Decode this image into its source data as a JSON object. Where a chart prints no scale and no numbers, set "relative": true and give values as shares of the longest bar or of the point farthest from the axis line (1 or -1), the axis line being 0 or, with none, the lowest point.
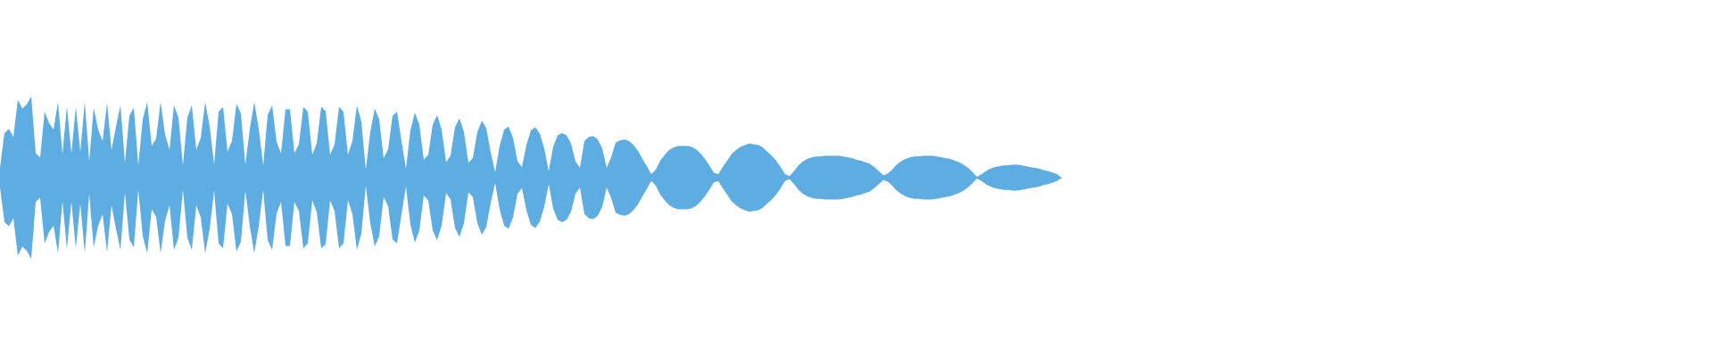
{
  "chart_data": {
    "type": "area",
    "relative": true,
    "categories": [
      null,
      null,
      null,
      null,
      null,
      null,
      null,
      null,
      null,
      null,
      null,
      null,
      null,
      null,
      null,
      null,
      null,
      null,
      null,
      null,
      null,
      null,
      null,
      null,
      null,
      null,
      null,
      null,
      null,
      null,
      null,
      null,
      null,
      null,
      null,
      null,
      null,
      null,
      null,
      null,
      null,
      null,
      null,
      null,
      null,
      null,
      null,
      null,
      null,
      null,
      null,
      null,
      null,
      null,
      null,
      null,
      null,
      null,
      null,
      null,
      null,
      null,
      null,
      null,
      null,
      null,
      null,
      null,
      null,
      null,
      null,
      null,
      null,
      null,
      null,
      null,
      null,
      null,
      null,
      null,
      null,
      null,
      null,
      null,
      null,
      null,
      null,
      null,
      null,
      null,
      null,
      null,
      null,
      null,
      null,
      null,
      null,
      null,
      null,
      null,
      null,
      null,
      null,
      null,
      null,
      null,
      null,
      null,
      null,
      null,
      null,
      null,
      null,
      null,
      null,
      null,
      null,
      null,
      null,
      null,
      null,
      null,
      null,
      null,
      null,
      null,
      null,
      null,
      null,
      null,
      null,
      null,
      null,
      null,
      null,
      null,
      null,
      null,
      null,
      null,
      null,
      null,
      null,
      null,
      null,
      null,
      null,
      null,
      null,
      null,
      null,
      null,
      null,
      null,
      null,
      null,
      null,
      null,
      null,
      null,
      null,
      null,
      null,
      null,
      null,
      null,
      null,
      null,
      null,
      null,
      null,
      null,
      null,
      null,
      null,
      null,
      null,
      null,
      null,
      null,
      null,
      null,
      null,
      null,
      null,
      null,
      null,
      null,
      null,
      null,
      null,
      null,
      null,
      null,
      null,
      null,
      null,
      null,
      null,
      null,
      null,
      null,
      null,
      null,
      null,
      null,
      null,
      null,
      null,
      null,
      null,
      null,
      null,
      null,
      null,
      null,
      null,
      null,
      null,
      null,
      null,
      null,
      null,
      null,
      null,
      null,
      null,
      null,
      null,
      null,
      null,
      null,
      null,
      null,
      null,
      null,
      null,
      null,
      null
    ],
    "series": [
      {
        "color": "#5dade2",
        "values": [
          0.12,
          0.55,
          0.6,
          0.5,
          0.96,
          0.85,
          0.9,
          1.0,
          0.3,
          0.25,
          0.81,
          0.67,
          0.59,
          0.93,
          0.29,
          0.88,
          0.3,
          0.87,
          0.32,
          0.93,
          0.2,
          0.86,
          0.59,
          0.45,
          0.92,
          0.34,
          0.63,
          0.89,
          0.18,
          0.76,
          0.86,
          0.15,
          0.72,
          0.93,
          0.39,
          0.48,
          0.93,
          0.53,
          0.34,
          0.89,
          0.74,
          0.15,
          0.74,
          0.89,
          0.34,
          0.49,
          0.93,
          0.63,
          0.16,
          0.81,
          0.87,
          0.32,
          0.45,
          0.91,
          0.79,
          0.16,
          0.6,
          0.93,
          0.6,
          0.15,
          0.77,
          0.89,
          0.44,
          0.3,
          0.84,
          0.84,
          0.3,
          0.41,
          0.87,
          0.81,
          0.28,
          0.42,
          0.87,
          0.82,
          0.28,
          0.41,
          0.87,
          0.81,
          0.28,
          0.45,
          0.89,
          0.69,
          0.1,
          0.56,
          0.85,
          0.72,
          0.24,
          0.35,
          0.76,
          0.81,
          0.45,
          0.11,
          0.58,
          0.8,
          0.65,
          0.22,
          0.28,
          0.65,
          0.77,
          0.59,
          0.19,
          0.27,
          0.62,
          0.73,
          0.56,
          0.18,
          0.24,
          0.56,
          0.7,
          0.61,
          0.31,
          0.07,
          0.39,
          0.59,
          0.63,
          0.49,
          0.2,
          0.13,
          0.4,
          0.58,
          0.62,
          0.54,
          0.36,
          0.08,
          0.38,
          0.52,
          0.55,
          0.52,
          0.42,
          0.2,
          0.12,
          0.45,
          0.5,
          0.51,
          0.47,
          0.36,
          0.12,
          0.25,
          0.43,
          0.46,
          0.47,
          0.45,
          0.4,
          0.33,
          0.23,
          0.14,
          0.04,
          0.1,
          0.21,
          0.28,
          0.34,
          0.37,
          0.39,
          0.39,
          0.39,
          0.38,
          0.35,
          0.3,
          0.23,
          0.15,
          0.06,
          0.04,
          0.13,
          0.21,
          0.29,
          0.34,
          0.38,
          0.4,
          0.42,
          0.41,
          0.4,
          0.37,
          0.32,
          0.27,
          0.21,
          0.13,
          0.04,
          0.02,
          0.08,
          0.15,
          0.2,
          0.23,
          0.25,
          0.26,
          0.26,
          0.27,
          0.27,
          0.27,
          0.27,
          0.26,
          0.25,
          0.24,
          0.22,
          0.21,
          0.19,
          0.17,
          0.13,
          0.08,
          0.03,
          0.05,
          0.1,
          0.16,
          0.2,
          0.23,
          0.25,
          0.26,
          0.26,
          0.27,
          0.27,
          0.27,
          0.26,
          0.25,
          0.24,
          0.23,
          0.21,
          0.19,
          0.16,
          0.12,
          0.07,
          0.01,
          0.04,
          0.08,
          0.11,
          0.13,
          0.14,
          0.15,
          0.15,
          0.16,
          0.16,
          0.15,
          0.14,
          0.13,
          0.12,
          0.11,
          0.09,
          0.08,
          0.06,
          0.04,
          0
        ]
      },
      {
        "color": "#5dade2",
        "values": [
          -0.12,
          -0.55,
          -0.6,
          -0.5,
          -0.96,
          -0.85,
          -0.9,
          -1.0,
          -0.3,
          -0.25,
          -0.81,
          -0.67,
          -0.59,
          -0.93,
          -0.29,
          -0.88,
          -0.3,
          -0.87,
          -0.32,
          -0.93,
          -0.2,
          -0.86,
          -0.59,
          -0.45,
          -0.92,
          -0.34,
          -0.63,
          -0.89,
          -0.18,
          -0.76,
          -0.86,
          -0.15,
          -0.72,
          -0.93,
          -0.39,
          -0.48,
          -0.93,
          -0.53,
          -0.34,
          -0.89,
          -0.74,
          -0.15,
          -0.74,
          -0.89,
          -0.34,
          -0.49,
          -0.93,
          -0.63,
          -0.16,
          -0.81,
          -0.87,
          -0.32,
          -0.45,
          -0.91,
          -0.79,
          -0.16,
          -0.6,
          -0.93,
          -0.6,
          -0.15,
          -0.77,
          -0.89,
          -0.44,
          -0.3,
          -0.84,
          -0.84,
          -0.3,
          -0.41,
          -0.87,
          -0.81,
          -0.28,
          -0.42,
          -0.87,
          -0.82,
          -0.28,
          -0.41,
          -0.87,
          -0.81,
          -0.28,
          -0.45,
          -0.89,
          -0.69,
          -0.1,
          -0.56,
          -0.85,
          -0.72,
          -0.24,
          -0.35,
          -0.76,
          -0.81,
          -0.45,
          -0.11,
          -0.58,
          -0.8,
          -0.65,
          -0.22,
          -0.28,
          -0.65,
          -0.77,
          -0.59,
          -0.19,
          -0.27,
          -0.62,
          -0.73,
          -0.56,
          -0.18,
          -0.24,
          -0.56,
          -0.7,
          -0.61,
          -0.31,
          -0.07,
          -0.39,
          -0.59,
          -0.63,
          -0.49,
          -0.2,
          -0.13,
          -0.4,
          -0.58,
          -0.62,
          -0.54,
          -0.36,
          -0.08,
          -0.38,
          -0.52,
          -0.55,
          -0.52,
          -0.42,
          -0.2,
          -0.12,
          -0.45,
          -0.5,
          -0.51,
          -0.47,
          -0.36,
          -0.12,
          -0.25,
          -0.43,
          -0.46,
          -0.47,
          -0.45,
          -0.4,
          -0.33,
          -0.23,
          -0.14,
          -0.04,
          -0.1,
          -0.21,
          -0.28,
          -0.34,
          -0.37,
          -0.39,
          -0.39,
          -0.39,
          -0.38,
          -0.35,
          -0.3,
          -0.23,
          -0.15,
          -0.06,
          -0.04,
          -0.13,
          -0.21,
          -0.29,
          -0.34,
          -0.38,
          -0.4,
          -0.42,
          -0.41,
          -0.4,
          -0.37,
          -0.32,
          -0.27,
          -0.21,
          -0.13,
          -0.04,
          -0.02,
          -0.08,
          -0.15,
          -0.2,
          -0.23,
          -0.25,
          -0.26,
          -0.26,
          -0.27,
          -0.27,
          -0.27,
          -0.27,
          -0.26,
          -0.25,
          -0.24,
          -0.22,
          -0.21,
          -0.19,
          -0.17,
          -0.13,
          -0.08,
          -0.03,
          -0.05,
          -0.1,
          -0.16,
          -0.2,
          -0.23,
          -0.25,
          -0.26,
          -0.26,
          -0.27,
          -0.27,
          -0.27,
          -0.26,
          -0.25,
          -0.24,
          -0.23,
          -0.21,
          -0.19,
          -0.16,
          -0.12,
          -0.07,
          -0.01,
          -0.04,
          -0.08,
          -0.11,
          -0.13,
          -0.14,
          -0.15,
          -0.15,
          -0.16,
          -0.16,
          -0.15,
          -0.14,
          -0.13,
          -0.12,
          -0.11,
          -0.09,
          -0.08,
          -0.06,
          -0.04,
          0
        ]
      }
    ]
  }
}
